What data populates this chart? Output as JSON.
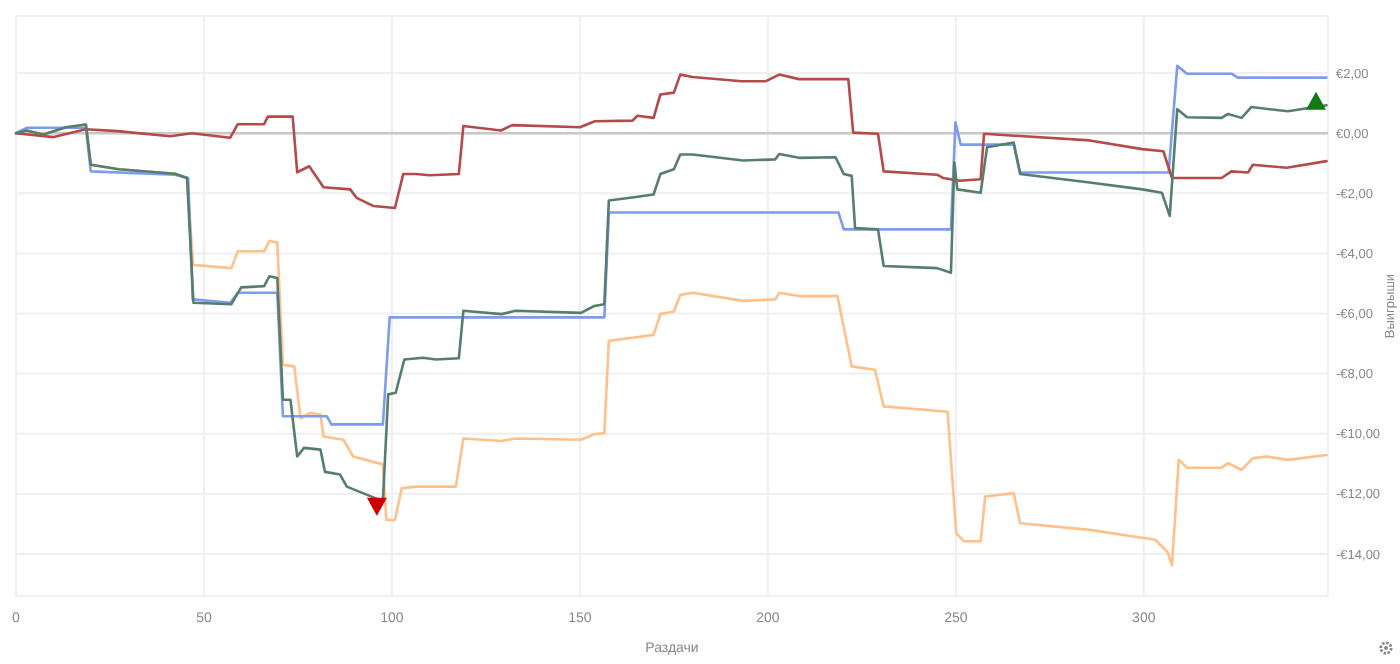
{
  "chart_data": {
    "type": "line",
    "xlabel": "Раздачи",
    "ylabel": "Выигрыши",
    "xlim": [
      0,
      349
    ],
    "ylim": [
      -15.4,
      3.9
    ],
    "xticks": [
      0,
      50,
      100,
      150,
      200,
      250,
      300
    ],
    "yticks": [
      {
        "value": 2,
        "label": "€2,00"
      },
      {
        "value": 0,
        "label": "€0,00"
      },
      {
        "value": -2,
        "label": "-€2,00"
      },
      {
        "value": -4,
        "label": "-€4,00"
      },
      {
        "value": -6,
        "label": "-€6,00"
      },
      {
        "value": -8,
        "label": "-€8,00"
      },
      {
        "value": -10,
        "label": "-€10,00"
      },
      {
        "value": -12,
        "label": "-€12,00"
      },
      {
        "value": -14,
        "label": "-€14,00"
      }
    ],
    "grid": true,
    "line_style": "solid",
    "ref_lines": [
      {
        "axis": "y",
        "value": 0,
        "color": "#c8c8c8"
      }
    ],
    "series": [
      {
        "color": "#ffc08a",
        "x": [
          0,
          2.8,
          7.3,
          13.3,
          18.6,
          19.9,
          27.4,
          42.3,
          45.5,
          47.1,
          57.3,
          59,
          66,
          67.4,
          69.5,
          71,
          74,
          75.7,
          78.3,
          81,
          81.8,
          87.1,
          89.7,
          97.6,
          98.5,
          100.8,
          102.6,
          106.4,
          117,
          119,
          129.2,
          132.8,
          150.3,
          153.8,
          156.5,
          157.7,
          164.4,
          169.6,
          171.4,
          175,
          176.7,
          180,
          193.4,
          202,
          203,
          208.3,
          218.5,
          222.3,
          228.5,
          230.8,
          247.8,
          250.1,
          252.2,
          256.6,
          257.8,
          265.4,
          267.1,
          285.6,
          303.1,
          306.3,
          307.5,
          309.3,
          311.5,
          320.7,
          322.4,
          326,
          329,
          332.6,
          338.3,
          348.6
        ],
        "values": [
          0,
          0.09,
          -0.04,
          0.2,
          0.29,
          -1.05,
          -1.2,
          -1.35,
          -1.49,
          -4.38,
          -4.49,
          -3.93,
          -3.93,
          -3.58,
          -3.64,
          -7.71,
          -7.76,
          -9.49,
          -9.31,
          -9.36,
          -10.09,
          -10.2,
          -10.76,
          -11.02,
          -12.87,
          -12.87,
          -11.82,
          -11.76,
          -11.76,
          -10.16,
          -10.24,
          -10.16,
          -10.2,
          -10.02,
          -9.98,
          -6.91,
          -6.8,
          -6.71,
          -6.02,
          -5.93,
          -5.38,
          -5.31,
          -5.58,
          -5.53,
          -5.31,
          -5.42,
          -5.42,
          -7.76,
          -7.87,
          -9.09,
          -9.27,
          -13.31,
          -13.58,
          -13.58,
          -12.09,
          -11.98,
          -12.98,
          -13.2,
          -13.53,
          -13.93,
          -14.38,
          -10.87,
          -11.13,
          -11.13,
          -10.98,
          -11.2,
          -10.82,
          -10.76,
          -10.87,
          -10.71
        ]
      },
      {
        "color": "#7d9cf0",
        "x": [
          0,
          2.8,
          18.6,
          19.9,
          42.3,
          45.8,
          47,
          57,
          59,
          69.5,
          71,
          82.7,
          83.9,
          97.6,
          99.4,
          156.5,
          157.7,
          218.8,
          220.2,
          248.7,
          249.9,
          251.3,
          265.4,
          267.1,
          306.6,
          308.9,
          311.5,
          323.3,
          325,
          348.6
        ],
        "values": [
          0,
          0.18,
          0.18,
          -1.27,
          -1.38,
          -1.49,
          -5.53,
          -5.64,
          -5.31,
          -5.31,
          -9.42,
          -9.42,
          -9.69,
          -9.69,
          -6.13,
          -6.13,
          -2.64,
          -2.64,
          -3.2,
          -3.2,
          0.36,
          -0.38,
          -0.38,
          -1.31,
          -1.31,
          2.24,
          1.98,
          1.98,
          1.85,
          1.85
        ]
      },
      {
        "color": "#b54a4a",
        "x": [
          0,
          10,
          18.6,
          27,
          41,
          46.7,
          57,
          59,
          66,
          67,
          73.6,
          74.8,
          78,
          81.8,
          88.9,
          90.6,
          95,
          100.8,
          103,
          106.4,
          110,
          117.8,
          119,
          129,
          132,
          150,
          154,
          164,
          165.3,
          169.6,
          171.4,
          175,
          176.7,
          180,
          193,
          199.5,
          203,
          208.3,
          221.4,
          222.7,
          229.3,
          230.8,
          245,
          246.6,
          251,
          256.6,
          257.5,
          285.6,
          299.6,
          305.2,
          307.5,
          320.7,
          323.3,
          327.7,
          329,
          338,
          348.6
        ],
        "values": [
          0,
          -0.13,
          0.13,
          0.07,
          -0.1,
          0,
          -0.15,
          0.3,
          0.3,
          0.55,
          0.55,
          -1.3,
          -1.1,
          -1.8,
          -1.87,
          -2.15,
          -2.42,
          -2.49,
          -1.36,
          -1.36,
          -1.4,
          -1.36,
          0.24,
          0.09,
          0.27,
          0.2,
          0.4,
          0.42,
          0.58,
          0.51,
          1.29,
          1.35,
          1.95,
          1.87,
          1.73,
          1.73,
          1.95,
          1.8,
          1.8,
          0.02,
          -0.02,
          -1.27,
          -1.38,
          -1.49,
          -1.58,
          -1.53,
          -0.02,
          -0.24,
          -0.53,
          -0.6,
          -1.49,
          -1.49,
          -1.27,
          -1.31,
          -1.05,
          -1.15,
          -0.93
        ]
      },
      {
        "color": "#557f6c",
        "x": [
          0,
          2.8,
          7.3,
          13.3,
          18.6,
          19.9,
          27.4,
          42.3,
          45.5,
          47.2,
          57.3,
          59.9,
          66,
          67.4,
          69.5,
          71,
          73,
          74.8,
          76.6,
          81,
          82.2,
          86.2,
          88,
          95.9,
          97.6,
          99,
          101,
          103.3,
          108.2,
          111.7,
          117.8,
          119,
          129.2,
          132.8,
          150.3,
          153.8,
          156.5,
          157.7,
          164.4,
          169.6,
          171.4,
          175,
          176.7,
          180,
          193.4,
          202,
          203,
          208.3,
          218,
          220.2,
          222.3,
          223.2,
          229.3,
          230.8,
          245,
          248.7,
          249.6,
          250.4,
          256.6,
          258.3,
          265.4,
          267.1,
          285.6,
          299.6,
          304.8,
          306.9,
          308.9,
          311.5,
          320.7,
          322.4,
          326,
          328.6,
          338.3,
          348.6
        ],
        "values": [
          0,
          0.09,
          -0.04,
          0.2,
          0.29,
          -1.05,
          -1.2,
          -1.35,
          -1.49,
          -5.64,
          -5.69,
          -5.13,
          -5.09,
          -4.76,
          -4.82,
          -8.87,
          -8.87,
          -10.76,
          -10.47,
          -10.53,
          -11.27,
          -11.36,
          -11.76,
          -12.16,
          -12.24,
          -8.69,
          -8.64,
          -7.53,
          -7.47,
          -7.53,
          -7.49,
          -5.91,
          -6.02,
          -5.91,
          -5.98,
          -5.75,
          -5.69,
          -2.24,
          -2.13,
          -2.04,
          -1.36,
          -1.2,
          -0.71,
          -0.71,
          -0.91,
          -0.87,
          -0.69,
          -0.82,
          -0.8,
          -1.36,
          -1.42,
          -3.16,
          -3.2,
          -4.42,
          -4.49,
          -4.64,
          -0.98,
          -1.87,
          -1.98,
          -0.47,
          -0.31,
          -1.36,
          -1.64,
          -1.87,
          -1.98,
          -2.75,
          0.8,
          0.53,
          0.51,
          0.64,
          0.51,
          0.87,
          0.73,
          0.93
        ]
      },
      {
        "type": "scatter",
        "color": "#cc0000",
        "marker": "triangle-down",
        "x": [
          96
        ],
        "values": [
          -12.4
        ]
      },
      {
        "type": "scatter",
        "color": "#117a11",
        "marker": "triangle",
        "x": [
          345.8
        ],
        "values": [
          1.05
        ]
      }
    ]
  }
}
